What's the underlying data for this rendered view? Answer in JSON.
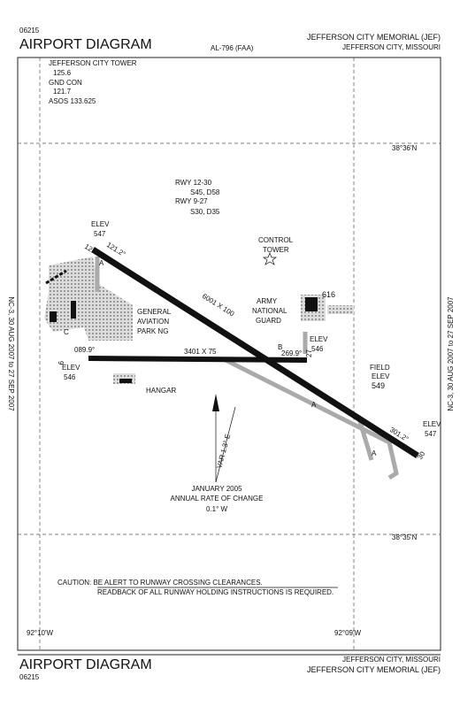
{
  "header": {
    "number": "06215",
    "title": "AIRPORT DIAGRAM",
    "code": "AL-796 (FAA)",
    "airport": "JEFFERSON CITY MEMORIAL (JEF)",
    "city": "JEFFERSON CITY, MISSOURI"
  },
  "frequencies": [
    "JEFFERSON CITY TOWER",
    "125.6",
    "GND CON",
    "121.7",
    "ASOS 133.625"
  ],
  "runway_info": [
    "RWY 12-30",
    "S45, D58",
    "RWY 9-27",
    "S30, D35"
  ],
  "latitudes": [
    "38°36'N",
    "38°35'N"
  ],
  "longitudes": [
    "92°10'W",
    "92°09'W"
  ],
  "labels": {
    "elev_12": [
      "ELEV",
      "547"
    ],
    "hdg_12": "121.2°",
    "tower": [
      "CONTROL",
      "TOWER"
    ],
    "guard_height": "616",
    "guard": [
      "ARMY",
      "NATIONAL",
      "GUARD"
    ],
    "ga": [
      "GENERAL",
      "AVIATION",
      "PARK NG"
    ],
    "rwy_12_dim": "6001 X 100",
    "elev_27": [
      "ELEV",
      "546"
    ],
    "hdg_27": "269.9°",
    "hdg_9": "089.9°",
    "rwy_9_dim": "3401 X 75",
    "elev_9": [
      "ELEV",
      "546"
    ],
    "hangar": "HANGAR",
    "field_elev": [
      "FIELD",
      "ELEV",
      "549"
    ],
    "hdg_30": "301.2°",
    "elev_30": [
      "ELEV",
      "547"
    ],
    "var": "VAR 1.3° E",
    "rate": [
      "JANUARY 2005",
      "ANNUAL RATE OF CHANGE",
      "0.1° W"
    ]
  },
  "runway_ends": [
    "12",
    "30",
    "9",
    "27"
  ],
  "taxiways": [
    "A",
    "A",
    "A",
    "B",
    "C"
  ],
  "caution": [
    "CAUTION: BE ALERT TO RUNWAY CROSSING CLEARANCES.",
    "READBACK OF ALL RUNWAY HOLDING INSTRUCTIONS IS REQUIRED."
  ],
  "side_note": "NC-3, 30 AUG 2007 to 27 SEP 2007",
  "footer": {
    "title": "AIRPORT DIAGRAM",
    "number": "06215",
    "city": "JEFFERSON CITY, MISSOURI",
    "airport": "JEFFERSON CITY MEMORIAL (JEF)"
  }
}
